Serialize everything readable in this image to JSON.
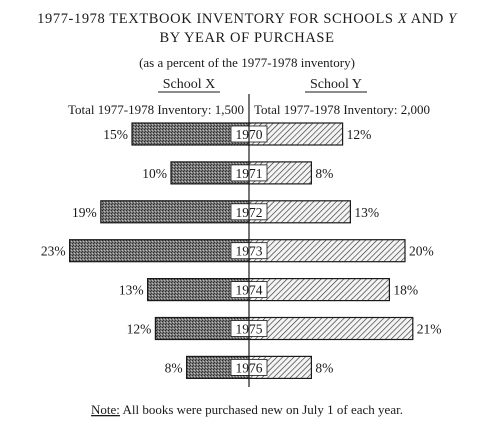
{
  "chart_data": {
    "type": "bar",
    "orientation": "horizontal-back-to-back",
    "title_line1_prefix": "1977-1978 TEXTBOOK INVENTORY FOR SCHOOLS ",
    "title_var_x": "X",
    "title_and": " AND ",
    "title_var_y": "Y",
    "title_line2": "BY YEAR OF PURCHASE",
    "subtitle": "(as a percent of the 1977-1978 inventory)",
    "school_x_label": "School X",
    "school_y_label": "School Y",
    "total_x": "Total 1977-1978 Inventory: 1,500",
    "total_y": "Total 1977-1978 Inventory: 2,000",
    "categories": [
      "1970",
      "1971",
      "1972",
      "1973",
      "1974",
      "1975",
      "1976"
    ],
    "series": [
      {
        "name": "School X",
        "values": [
          15,
          10,
          19,
          23,
          13,
          12,
          8
        ],
        "side": "left",
        "fill": "dark-stipple"
      },
      {
        "name": "School Y",
        "values": [
          12,
          8,
          13,
          20,
          18,
          21,
          8
        ],
        "side": "right",
        "fill": "diagonal-hatch"
      }
    ],
    "value_suffix": "%",
    "note_label": "Note:",
    "note_text": " All books were purchased new on July 1 of each year.",
    "colors": {
      "ink": "#1a1a1a",
      "school_x_fill": "#6e6e6e",
      "school_y_fill": "#dcdcdc"
    }
  }
}
